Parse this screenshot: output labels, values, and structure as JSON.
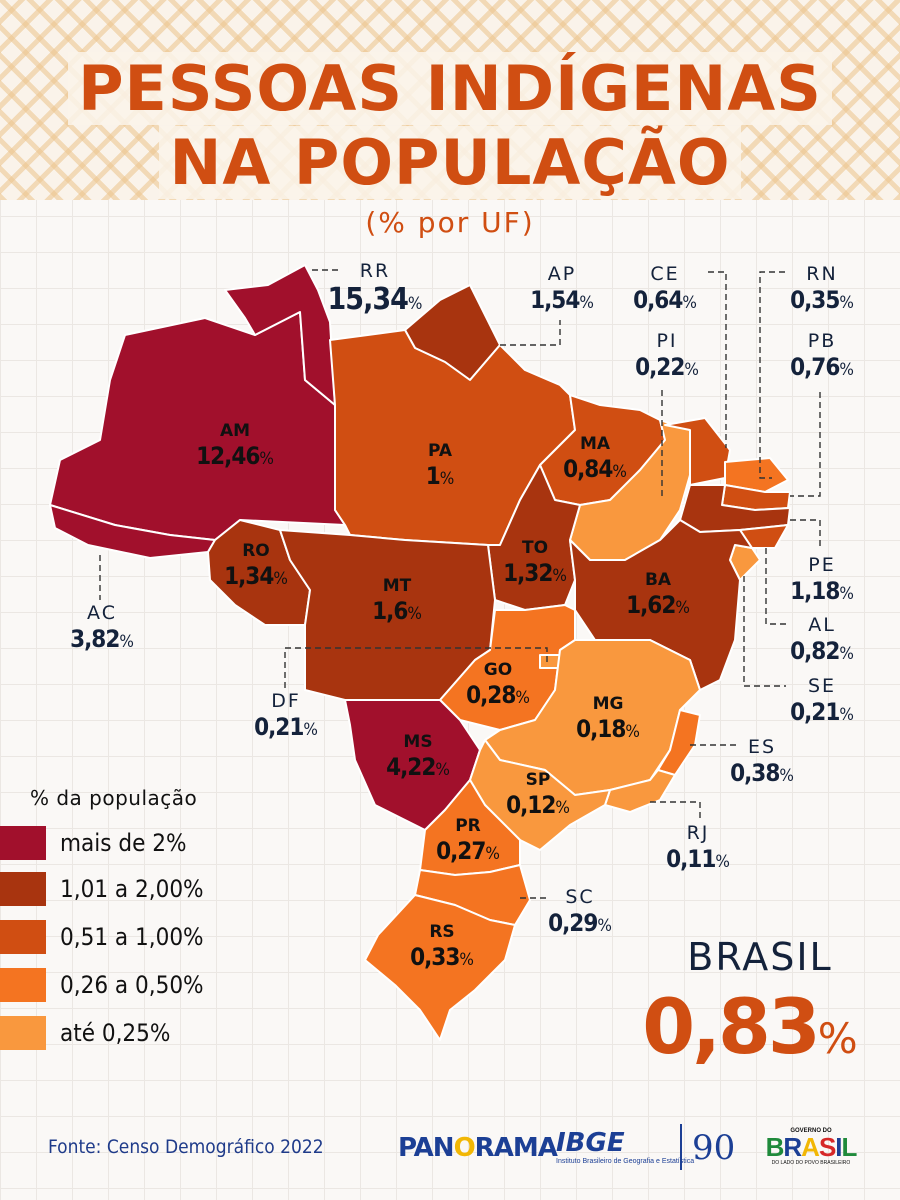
{
  "header": {
    "title_line1": "PESSOAS INDÍGENAS",
    "title_line2": "NA POPULAÇÃO",
    "subtitle": "(% por UF)"
  },
  "colors": {
    "more_than_2": "#a1102c",
    "from_1_01_to_2": "#a8340f",
    "from_0_51_to_1": "#d04e12",
    "from_0_26_to_0_50": "#f47421",
    "up_to_0_25": "#f9983e",
    "title": "#d04e12",
    "text_dark": "#14223b"
  },
  "states": {
    "RR": {
      "code": "RR",
      "value": "15,34",
      "unit": "%",
      "class": "more_than_2"
    },
    "AP": {
      "code": "AP",
      "value": "1,54",
      "unit": "%",
      "class": "from_1_01_to_2"
    },
    "AM": {
      "code": "AM",
      "value": "12,46",
      "unit": "%",
      "class": "more_than_2"
    },
    "PA": {
      "code": "PA",
      "value": "1",
      "unit": "%",
      "class": "from_0_51_to_1"
    },
    "AC": {
      "code": "AC",
      "value": "3,82",
      "unit": "%",
      "class": "more_than_2"
    },
    "RO": {
      "code": "RO",
      "value": "1,34",
      "unit": "%",
      "class": "from_1_01_to_2"
    },
    "MT": {
      "code": "MT",
      "value": "1,6",
      "unit": "%",
      "class": "from_1_01_to_2"
    },
    "TO": {
      "code": "TO",
      "value": "1,32",
      "unit": "%",
      "class": "from_1_01_to_2"
    },
    "MA": {
      "code": "MA",
      "value": "0,84",
      "unit": "%",
      "class": "from_0_51_to_1"
    },
    "PI": {
      "code": "PI",
      "value": "0,22",
      "unit": "%",
      "class": "up_to_0_25"
    },
    "CE": {
      "code": "CE",
      "value": "0,64",
      "unit": "%",
      "class": "from_0_51_to_1"
    },
    "RN": {
      "code": "RN",
      "value": "0,35",
      "unit": "%",
      "class": "from_0_26_to_0_50"
    },
    "PB": {
      "code": "PB",
      "value": "0,76",
      "unit": "%",
      "class": "from_0_51_to_1"
    },
    "PE": {
      "code": "PE",
      "value": "1,18",
      "unit": "%",
      "class": "from_1_01_to_2"
    },
    "AL": {
      "code": "AL",
      "value": "0,82",
      "unit": "%",
      "class": "from_0_51_to_1"
    },
    "SE": {
      "code": "SE",
      "value": "0,21",
      "unit": "%",
      "class": "up_to_0_25"
    },
    "BA": {
      "code": "BA",
      "value": "1,62",
      "unit": "%",
      "class": "from_1_01_to_2"
    },
    "GO": {
      "code": "GO",
      "value": "0,28",
      "unit": "%",
      "class": "from_0_26_to_0_50"
    },
    "DF": {
      "code": "DF",
      "value": "0,21",
      "unit": "%",
      "class": "up_to_0_25"
    },
    "MG": {
      "code": "MG",
      "value": "0,18",
      "unit": "%",
      "class": "up_to_0_25"
    },
    "ES": {
      "code": "ES",
      "value": "0,38",
      "unit": "%",
      "class": "from_0_26_to_0_50"
    },
    "RJ": {
      "code": "RJ",
      "value": "0,11",
      "unit": "%",
      "class": "up_to_0_25"
    },
    "SP": {
      "code": "SP",
      "value": "0,12",
      "unit": "%",
      "class": "up_to_0_25"
    },
    "MS": {
      "code": "MS",
      "value": "4,22",
      "unit": "%",
      "class": "more_than_2"
    },
    "PR": {
      "code": "PR",
      "value": "0,27",
      "unit": "%",
      "class": "from_0_26_to_0_50"
    },
    "SC": {
      "code": "SC",
      "value": "0,29",
      "unit": "%",
      "class": "from_0_26_to_0_50"
    },
    "RS": {
      "code": "RS",
      "value": "0,33",
      "unit": "%",
      "class": "from_0_26_to_0_50"
    }
  },
  "legend": {
    "title": "% da população",
    "items": [
      {
        "label": "mais de 2%",
        "color": "#a1102c"
      },
      {
        "label": "1,01 a 2,00%",
        "color": "#a8340f"
      },
      {
        "label": "0,51 a 1,00%",
        "color": "#d04e12"
      },
      {
        "label": "0,26 a 0,50%",
        "color": "#f47421"
      },
      {
        "label": "até 0,25%",
        "color": "#f9983e"
      }
    ]
  },
  "total": {
    "label": "BRASIL",
    "value": "0,83",
    "unit": "%"
  },
  "footer": {
    "source": "Fonte: Censo Demográfico 2022",
    "logo_panorama_1": "PAN",
    "logo_panorama_2": "O",
    "logo_panorama_3": "RAMA",
    "logo_ibge": "IBGE",
    "logo_ibge_sub": "Instituto Brasileiro de Geografia e Estatística",
    "logo_90": "90",
    "logo_gov_top": "GOVERNO DO",
    "logo_gov_main": "BRASIL",
    "logo_gov_bottom": "DO LADO DO POVO BRASILEIRO"
  }
}
